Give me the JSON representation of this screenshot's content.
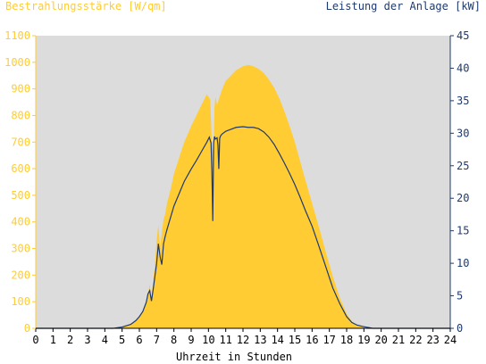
{
  "chart_data": {
    "type": "area",
    "left_axis_label": "Bestrahlungsstärke [W/qm]",
    "right_axis_label": "Leistung der Anlage [kW]",
    "xlabel": "Uhrzeit in Stunden",
    "x_ticks": [
      "0",
      "1",
      "2",
      "3",
      "4",
      "5",
      "6",
      "7",
      "8",
      "9",
      "10",
      "11",
      "12",
      "13",
      "14",
      "15",
      "16",
      "17",
      "18",
      "19",
      "20",
      "21",
      "22",
      "23",
      "24"
    ],
    "y_left_ticks": [
      "0",
      "100",
      "200",
      "300",
      "400",
      "500",
      "600",
      "700",
      "800",
      "900",
      "1000",
      "1100"
    ],
    "y_right_ticks": [
      "0",
      "5",
      "10",
      "15",
      "20",
      "25",
      "30",
      "35",
      "40",
      "45"
    ],
    "xlim": [
      0,
      24
    ],
    "ylim_left": [
      0,
      1100
    ],
    "ylim_right": [
      0,
      45
    ],
    "grid": false,
    "colors": {
      "plot_bg": "#dcdcdc",
      "irradiance": "#ffcc33",
      "power": "#1f3a6e",
      "left_axis_text": "#ffcc33",
      "right_axis_text": "#1f3a6e",
      "axis": "#000000"
    },
    "series": [
      {
        "name": "Bestrahlungsstärke [W/qm]",
        "axis": "left",
        "style": "area",
        "x": [
          0,
          4.5,
          5,
          5.5,
          5.8,
          6,
          6.2,
          6.4,
          6.5,
          6.6,
          6.7,
          6.8,
          6.9,
          7,
          7.1,
          7.2,
          7.3,
          7.4,
          7.5,
          7.6,
          7.8,
          8,
          8.3,
          8.6,
          9,
          9.3,
          9.6,
          9.9,
          10.1,
          10.2,
          10.3,
          10.35,
          10.4,
          10.5,
          10.6,
          10.7,
          10.8,
          11,
          11.3,
          11.6,
          12,
          12.3,
          12.6,
          12.9,
          13.2,
          13.5,
          13.8,
          14.1,
          14.4,
          14.7,
          15,
          15.3,
          15.6,
          16,
          16.4,
          16.8,
          17.2,
          17.6,
          18,
          18.3,
          18.6,
          18.9,
          19.1,
          19.3,
          19.5,
          19.7,
          20,
          20.3,
          20.6,
          21,
          24
        ],
        "values": [
          0,
          0,
          5,
          15,
          30,
          45,
          65,
          100,
          130,
          165,
          110,
          180,
          240,
          330,
          390,
          300,
          360,
          410,
          430,
          470,
          520,
          580,
          640,
          700,
          760,
          800,
          840,
          880,
          860,
          700,
          650,
          830,
          870,
          840,
          860,
          880,
          900,
          930,
          950,
          970,
          985,
          990,
          985,
          975,
          960,
          935,
          905,
          865,
          815,
          760,
          700,
          630,
          560,
          470,
          380,
          285,
          195,
          115,
          55,
          25,
          12,
          5,
          2,
          0,
          0,
          0,
          0,
          0,
          0,
          0,
          0
        ]
      },
      {
        "name": "Leistung der Anlage [kW]",
        "axis": "right",
        "style": "line",
        "x": [
          0,
          4.5,
          5,
          5.5,
          5.8,
          6,
          6.2,
          6.4,
          6.5,
          6.6,
          6.7,
          6.8,
          6.9,
          7,
          7.1,
          7.2,
          7.3,
          7.4,
          7.5,
          7.6,
          7.8,
          8,
          8.3,
          8.6,
          9,
          9.3,
          9.6,
          9.9,
          10.05,
          10.15,
          10.2,
          10.25,
          10.3,
          10.35,
          10.4,
          10.5,
          10.55,
          10.6,
          10.65,
          10.7,
          10.8,
          11,
          11.3,
          11.6,
          12,
          12.3,
          12.6,
          12.9,
          13.2,
          13.5,
          13.8,
          14.1,
          14.4,
          14.7,
          15,
          15.3,
          15.6,
          16,
          16.4,
          16.8,
          17.2,
          17.6,
          18,
          18.3,
          18.6,
          18.9,
          19.1,
          19.3,
          19.5,
          19.7,
          20,
          20.3,
          20.6,
          21,
          24
        ],
        "values": [
          0,
          0,
          0.2,
          0.6,
          1.2,
          1.8,
          2.6,
          4,
          5.3,
          5.8,
          4.2,
          6,
          8,
          10,
          13,
          11,
          9.8,
          13,
          14.2,
          15.2,
          17,
          18.8,
          20.7,
          22.6,
          24.5,
          25.8,
          27.2,
          28.6,
          29.4,
          28.5,
          24,
          16.5,
          28.5,
          29.5,
          29.1,
          29.3,
          28.2,
          24.5,
          29.2,
          29.6,
          29.9,
          30.3,
          30.6,
          30.9,
          31,
          30.9,
          30.9,
          30.7,
          30.2,
          29.4,
          28.3,
          26.9,
          25.4,
          23.8,
          22.1,
          20.2,
          18.2,
          15.7,
          12.6,
          9.4,
          6.2,
          3.8,
          1.8,
          0.9,
          0.5,
          0.3,
          0.2,
          0.1,
          0,
          0,
          0,
          0,
          0,
          0,
          0
        ]
      }
    ]
  }
}
